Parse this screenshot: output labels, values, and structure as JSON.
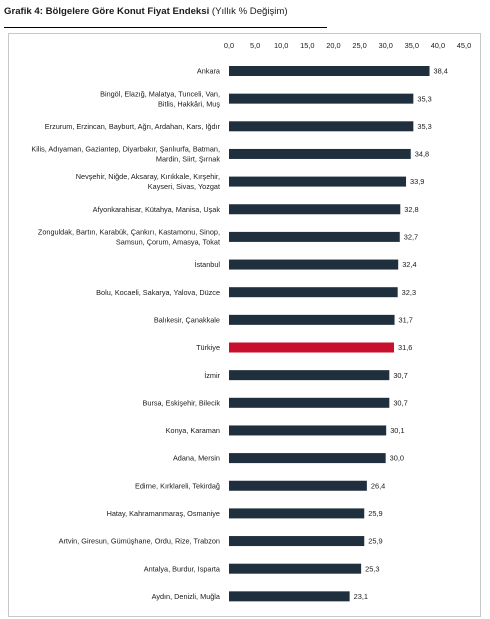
{
  "header": {
    "title_bold": "Grafik 4: Bölgelere Göre Konut Fiyat Endeksi",
    "title_rest": "(Yıllık % Değişim)"
  },
  "colors": {
    "bar": "#1f2f3e",
    "highlight": "#c8102e",
    "frame": "#c8c8c8",
    "text": "#1a1a1a"
  },
  "chart_data": {
    "type": "bar",
    "orientation": "horizontal",
    "title": "Grafik 4: Bölgelere Göre Konut Fiyat Endeksi (Yıllık % Değişim)",
    "xlabel": "",
    "ylabel": "",
    "xlim": [
      0,
      45
    ],
    "x_ticks": [
      "0,0",
      "5,0",
      "10,0",
      "15,0",
      "20,0",
      "25,0",
      "30,0",
      "35,0",
      "40,0",
      "45,0"
    ],
    "x_tick_values": [
      0,
      5,
      10,
      15,
      20,
      25,
      30,
      35,
      40,
      45
    ],
    "axis_position": "top",
    "grid": false,
    "legend": "none",
    "highlight_category": "Türkiye",
    "categories": [
      [
        "Ankara"
      ],
      [
        "Bingöl, Elazığ, Malatya, Tunceli, Van,",
        "Bitlis, Hakkâri, Muş"
      ],
      [
        "Erzurum, Erzincan, Bayburt, Ağrı, Ardahan, Kars, Iğdır"
      ],
      [
        "Kilis, Adıyaman, Gaziantep, Diyarbakır, Şanlıurfa, Batman,",
        "Mardin, Siirt, Şırnak"
      ],
      [
        "Nevşehir, Niğde, Aksaray, Kırıkkale, Kırşehir,",
        "Kayseri, Sivas, Yozgat"
      ],
      [
        "Afyonkarahisar, Kütahya, Manisa, Uşak"
      ],
      [
        "Zonguldak, Bartın, Karabük, Çankırı, Kastamonu, Sinop,",
        "Samsun, Çorum, Amasya, Tokat"
      ],
      [
        "İstanbul"
      ],
      [
        "Bolu, Kocaeli, Sakarya, Yalova, Düzce"
      ],
      [
        "Balıkesir, Çanakkale"
      ],
      [
        "Türkiye"
      ],
      [
        "İzmir"
      ],
      [
        "Bursa, Eskişehir, Bilecik"
      ],
      [
        "Konya, Karaman"
      ],
      [
        "Adana, Mersin"
      ],
      [
        "Edirne, Kırklareli, Tekirdağ"
      ],
      [
        "Hatay, Kahramanmaraş, Osmaniye"
      ],
      [
        "Artvin, Giresun, Gümüşhane, Ordu, Rize, Trabzon"
      ],
      [
        "Antalya, Burdur, Isparta"
      ],
      [
        "Aydın, Denizli, Muğla"
      ]
    ],
    "values": [
      38.4,
      35.3,
      35.3,
      34.8,
      33.9,
      32.8,
      32.7,
      32.4,
      32.3,
      31.7,
      31.6,
      30.7,
      30.7,
      30.1,
      30.0,
      26.4,
      25.9,
      25.9,
      25.3,
      23.1
    ],
    "value_labels": [
      "38,4",
      "35,3",
      "35,3",
      "34,8",
      "33,9",
      "32,8",
      "32,7",
      "32,4",
      "32,3",
      "31,7",
      "31,6",
      "30,7",
      "30,7",
      "30,1",
      "30,0",
      "26,4",
      "25,9",
      "25,9",
      "25,3",
      "23,1"
    ]
  }
}
